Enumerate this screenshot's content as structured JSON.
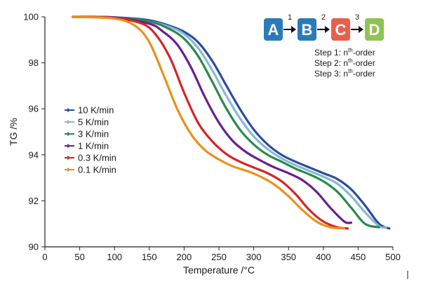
{
  "chart_data": {
    "type": "line",
    "xlabel": "Temperature /°C",
    "ylabel": "TG /%",
    "xlim": [
      0,
      500
    ],
    "ylim": [
      90,
      100
    ],
    "xticks": [
      0,
      50,
      100,
      150,
      200,
      250,
      300,
      350,
      400,
      450,
      500
    ],
    "yticks": [
      90,
      92,
      94,
      96,
      98,
      100
    ],
    "grid": false,
    "legend_position": "left-middle",
    "series": [
      {
        "name": "10 K/min",
        "color": "#2f4a9e",
        "x": [
          40,
          100,
          150,
          180,
          200,
          220,
          240,
          260,
          280,
          300,
          320,
          340,
          360,
          380,
          400,
          420,
          440,
          460,
          480,
          495
        ],
        "y": [
          100,
          99.98,
          99.85,
          99.6,
          99.35,
          98.9,
          98.1,
          97.05,
          96.0,
          95.1,
          94.45,
          94.0,
          93.7,
          93.45,
          93.2,
          92.95,
          92.5,
          91.8,
          91.0,
          90.8
        ]
      },
      {
        "name": "5 K/min",
        "color": "#86b8d8",
        "x": [
          40,
          100,
          150,
          180,
          200,
          220,
          240,
          260,
          280,
          300,
          320,
          340,
          360,
          380,
          400,
          420,
          440,
          460,
          480,
          490
        ],
        "y": [
          100,
          99.98,
          99.8,
          99.55,
          99.25,
          98.65,
          97.7,
          96.6,
          95.6,
          94.8,
          94.25,
          93.85,
          93.55,
          93.3,
          93.05,
          92.75,
          92.2,
          91.5,
          90.9,
          90.85
        ]
      },
      {
        "name": "3 K/min",
        "color": "#2a8a4a",
        "x": [
          40,
          100,
          150,
          180,
          200,
          220,
          240,
          260,
          280,
          300,
          320,
          340,
          360,
          380,
          400,
          420,
          440,
          460,
          480
        ],
        "y": [
          100,
          99.97,
          99.8,
          99.45,
          99.05,
          98.3,
          97.2,
          96.05,
          95.1,
          94.45,
          94.0,
          93.7,
          93.4,
          93.15,
          92.85,
          92.4,
          91.7,
          91.0,
          90.85
        ]
      },
      {
        "name": "1 K/min",
        "color": "#6a1f8f",
        "x": [
          40,
          100,
          150,
          170,
          190,
          210,
          230,
          250,
          270,
          290,
          310,
          330,
          350,
          370,
          390,
          410,
          430,
          440
        ],
        "y": [
          100,
          99.97,
          99.7,
          99.35,
          98.8,
          97.8,
          96.5,
          95.4,
          94.6,
          94.1,
          93.75,
          93.45,
          93.2,
          92.9,
          92.4,
          91.7,
          91.1,
          91.05
        ]
      },
      {
        "name": "0.3 K/min",
        "color": "#d4252a",
        "x": [
          40,
          100,
          140,
          160,
          180,
          200,
          220,
          240,
          260,
          280,
          300,
          320,
          340,
          360,
          380,
          400,
          420,
          435
        ],
        "y": [
          100,
          99.95,
          99.7,
          99.2,
          98.2,
          96.7,
          95.4,
          94.6,
          94.05,
          93.7,
          93.45,
          93.2,
          92.85,
          92.3,
          91.6,
          91.1,
          90.85,
          90.8
        ]
      },
      {
        "name": "0.1 K/min",
        "color": "#e8921a",
        "x": [
          40,
          100,
          130,
          150,
          170,
          190,
          210,
          230,
          250,
          270,
          290,
          310,
          330,
          350,
          370,
          390,
          410,
          430
        ],
        "y": [
          100,
          99.92,
          99.6,
          98.9,
          97.5,
          96.0,
          94.9,
          94.2,
          93.8,
          93.5,
          93.3,
          93.05,
          92.7,
          92.2,
          91.6,
          91.1,
          90.85,
          90.8
        ]
      }
    ],
    "diagram": {
      "nodes": [
        {
          "label": "A",
          "color": "#2b7bb9"
        },
        {
          "label": "B",
          "color": "#2b7bb9"
        },
        {
          "label": "C",
          "color": "#e8604c"
        },
        {
          "label": "D",
          "color": "#8ec454"
        }
      ],
      "arrows": [
        "1",
        "2",
        "3"
      ],
      "steps": [
        {
          "prefix": "Step 1:",
          "base": "n",
          "sup": "th",
          "suffix": "-order"
        },
        {
          "prefix": "Step 2:",
          "base": "n",
          "sup": "th",
          "suffix": "-order"
        },
        {
          "prefix": "Step 3:",
          "base": "n",
          "sup": "th",
          "suffix": "-order"
        }
      ]
    }
  }
}
